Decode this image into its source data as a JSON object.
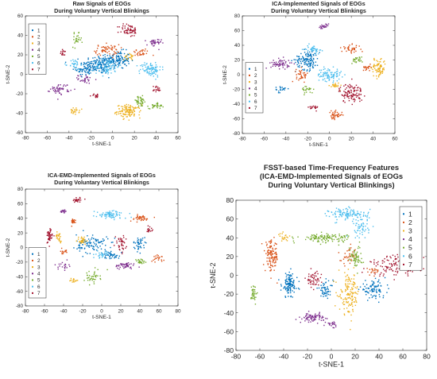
{
  "chart_data": [
    {
      "type": "scatter",
      "title": [
        "Raw Signals of EOGs",
        "During Voluntary Vertical Blinkings"
      ],
      "xlabel": "t-SNE-1",
      "ylabel": "t-SNE-2",
      "xlim": [
        -80,
        60
      ],
      "ylim": [
        -60,
        60
      ],
      "xticks": [
        -80,
        -60,
        -40,
        -20,
        0,
        20,
        40,
        60
      ],
      "yticks": [
        -60,
        -40,
        -20,
        0,
        20,
        40,
        60
      ],
      "legend": "left",
      "series": [
        {
          "name": "1",
          "color": "#0072BD",
          "clusters": [
            [
              -12,
              10,
              14,
              9,
              150
            ],
            [
              5,
              15,
              10,
              8,
              120
            ],
            [
              -25,
              5,
              8,
              6,
              60
            ]
          ]
        },
        {
          "name": "2",
          "color": "#D95319",
          "clusters": [
            [
              -5,
              25,
              10,
              5,
              60
            ],
            [
              25,
              22,
              8,
              4,
              30
            ]
          ]
        },
        {
          "name": "3",
          "color": "#EDB120",
          "clusters": [
            [
              15,
              -38,
              10,
              6,
              120
            ],
            [
              -35,
              -38,
              4,
              3,
              25
            ],
            [
              15,
              18,
              4,
              3,
              20
            ]
          ]
        },
        {
          "name": "4",
          "color": "#7E2F8E",
          "clusters": [
            [
              -48,
              -15,
              8,
              5,
              50
            ],
            [
              -25,
              -5,
              6,
              4,
              30
            ],
            [
              38,
              32,
              6,
              4,
              35
            ]
          ]
        },
        {
          "name": "5",
          "color": "#77AC30",
          "clusters": [
            [
              25,
              -28,
              6,
              5,
              40
            ],
            [
              40,
              -32,
              6,
              3,
              30
            ],
            [
              -33,
              35,
              4,
              6,
              25
            ]
          ]
        },
        {
          "name": "6",
          "color": "#4DBEEE",
          "clusters": [
            [
              35,
              5,
              9,
              7,
              90
            ],
            [
              -5,
              8,
              10,
              8,
              70
            ],
            [
              -35,
              10,
              5,
              5,
              30
            ]
          ]
        },
        {
          "name": "7",
          "color": "#A2142F",
          "clusters": [
            [
              15,
              45,
              8,
              6,
              60
            ],
            [
              -45,
              22,
              3,
              3,
              15
            ],
            [
              -15,
              -22,
              4,
              2,
              15
            ],
            [
              40,
              -15,
              4,
              3,
              20
            ]
          ]
        }
      ]
    },
    {
      "type": "scatter",
      "title": [
        "ICA-Implemented Signals of EOGs",
        "During Voluntary Vertical Blinkings"
      ],
      "xlabel": "t-SNE-1",
      "ylabel": "t-SNE-2",
      "xlim": [
        -80,
        60
      ],
      "ylim": [
        -80,
        80
      ],
      "xticks": [
        -80,
        -60,
        -40,
        -20,
        0,
        20,
        40,
        60
      ],
      "yticks": [
        -80,
        -60,
        -40,
        -20,
        0,
        20,
        40,
        60,
        80
      ],
      "legend": "left",
      "series": [
        {
          "name": "1",
          "color": "#0072BD",
          "clusters": [
            [
              -20,
              20,
              10,
              12,
              130
            ],
            [
              -45,
              -20,
              4,
              4,
              20
            ]
          ]
        },
        {
          "name": "2",
          "color": "#D95319",
          "clusters": [
            [
              -25,
              0,
              5,
              8,
              40
            ],
            [
              35,
              10,
              4,
              3,
              20
            ],
            [
              5,
              -55,
              6,
              5,
              40
            ],
            [
              20,
              35,
              8,
              5,
              40
            ]
          ]
        },
        {
          "name": "3",
          "color": "#EDB120",
          "clusters": [
            [
              45,
              10,
              6,
              12,
              80
            ],
            [
              5,
              -15,
              4,
              4,
              20
            ]
          ]
        },
        {
          "name": "4",
          "color": "#7E2F8E",
          "clusters": [
            [
              -45,
              15,
              8,
              6,
              60
            ],
            [
              -5,
              65,
              5,
              3,
              25
            ]
          ]
        },
        {
          "name": "5",
          "color": "#77AC30",
          "clusters": [
            [
              -20,
              -20,
              5,
              5,
              25
            ],
            [
              25,
              20,
              5,
              4,
              25
            ]
          ]
        },
        {
          "name": "6",
          "color": "#4DBEEE",
          "clusters": [
            [
              0,
              0,
              10,
              8,
              90
            ],
            [
              -15,
              35,
              6,
              5,
              40
            ]
          ]
        },
        {
          "name": "7",
          "color": "#A2142F",
          "clusters": [
            [
              20,
              -25,
              10,
              12,
              110
            ],
            [
              -15,
              -45,
              4,
              3,
              20
            ]
          ]
        }
      ]
    },
    {
      "type": "scatter",
      "title": [
        "ICA-EMD-Implemented Signals of EOGs",
        "During Voluntary Vertical Blinkings"
      ],
      "xlabel": "t-SNE-1",
      "ylabel": "t-SNE-2",
      "xlim": [
        -80,
        80
      ],
      "ylim": [
        -80,
        80
      ],
      "xticks": [
        -80,
        -60,
        -40,
        -20,
        0,
        20,
        40,
        60,
        80
      ],
      "yticks": [
        -80,
        -60,
        -40,
        -20,
        0,
        20,
        40,
        60,
        80
      ],
      "legend": "left",
      "series": [
        {
          "name": "1",
          "color": "#0072BD",
          "clusters": [
            [
              -10,
              5,
              15,
              12,
              100
            ],
            [
              40,
              5,
              6,
              8,
              40
            ],
            [
              10,
              -10,
              8,
              5,
              40
            ]
          ]
        },
        {
          "name": "2",
          "color": "#D95319",
          "clusters": [
            [
              -30,
              35,
              4,
              4,
              20
            ],
            [
              40,
              40,
              10,
              4,
              40
            ],
            [
              -40,
              -5,
              4,
              4,
              15
            ],
            [
              60,
              -15,
              5,
              4,
              20
            ]
          ]
        },
        {
          "name": "3",
          "color": "#EDB120",
          "clusters": [
            [
              -45,
              15,
              3,
              6,
              25
            ],
            [
              -20,
              10,
              5,
              5,
              30
            ],
            [
              -30,
              -45,
              4,
              3,
              15
            ]
          ]
        },
        {
          "name": "4",
          "color": "#7E2F8E",
          "clusters": [
            [
              25,
              -25,
              10,
              4,
              50
            ],
            [
              -40,
              50,
              3,
              3,
              15
            ],
            [
              -40,
              -25,
              5,
              5,
              20
            ]
          ]
        },
        {
          "name": "5",
          "color": "#77AC30",
          "clusters": [
            [
              -10,
              -40,
              8,
              8,
              40
            ],
            [
              40,
              -20,
              5,
              4,
              25
            ]
          ]
        },
        {
          "name": "6",
          "color": "#4DBEEE",
          "clusters": [
            [
              10,
              45,
              15,
              5,
              80
            ],
            [
              0,
              -10,
              5,
              4,
              25
            ]
          ]
        },
        {
          "name": "7",
          "color": "#A2142F",
          "clusters": [
            [
              -55,
              15,
              3,
              10,
              45
            ],
            [
              -25,
              65,
              6,
              3,
              25
            ],
            [
              20,
              5,
              5,
              10,
              40
            ],
            [
              50,
              25,
              3,
              4,
              15
            ]
          ]
        }
      ]
    },
    {
      "type": "scatter",
      "title": [
        "FSST-based Time-Frequency Features",
        "(ICA-EMD-Implemented Signals of EOGs",
        "During Voluntary Vertical Blinkings)"
      ],
      "xlabel": "t-SNE-1",
      "ylabel": "t-SNE-2",
      "xlim": [
        -80,
        80
      ],
      "ylim": [
        -80,
        80
      ],
      "xticks": [
        -80,
        -60,
        -40,
        -20,
        0,
        20,
        40,
        60,
        80
      ],
      "yticks": [
        -80,
        -60,
        -40,
        -20,
        0,
        20,
        40,
        60,
        80
      ],
      "legend": "right",
      "series": [
        {
          "name": "1",
          "color": "#0072BD",
          "clusters": [
            [
              -35,
              -10,
              6,
              12,
              120
            ],
            [
              -5,
              -15,
              6,
              8,
              50
            ],
            [
              35,
              -15,
              10,
              8,
              90
            ]
          ]
        },
        {
          "name": "2",
          "color": "#D95319",
          "clusters": [
            [
              -50,
              20,
              5,
              15,
              120
            ],
            [
              15,
              20,
              6,
              8,
              40
            ],
            [
              35,
              5,
              5,
              4,
              20
            ]
          ]
        },
        {
          "name": "3",
          "color": "#EDB120",
          "clusters": [
            [
              15,
              -20,
              8,
              20,
              140
            ],
            [
              -40,
              40,
              4,
              4,
              20
            ]
          ]
        },
        {
          "name": "4",
          "color": "#7E2F8E",
          "clusters": [
            [
              -15,
              -45,
              8,
              4,
              80
            ],
            [
              0,
              -52,
              4,
              3,
              20
            ]
          ]
        },
        {
          "name": "5",
          "color": "#77AC30",
          "clusters": [
            [
              -5,
              40,
              20,
              4,
              120
            ],
            [
              20,
              20,
              5,
              10,
              60
            ],
            [
              -65,
              -20,
              2,
              10,
              35
            ]
          ]
        },
        {
          "name": "6",
          "color": "#4DBEEE",
          "clusters": [
            [
              15,
              65,
              15,
              6,
              120
            ],
            [
              25,
              50,
              6,
              10,
              50
            ]
          ]
        },
        {
          "name": "7",
          "color": "#A2142F",
          "clusters": [
            [
              55,
              10,
              20,
              10,
              120
            ],
            [
              -15,
              -5,
              6,
              8,
              50
            ]
          ]
        }
      ]
    }
  ]
}
